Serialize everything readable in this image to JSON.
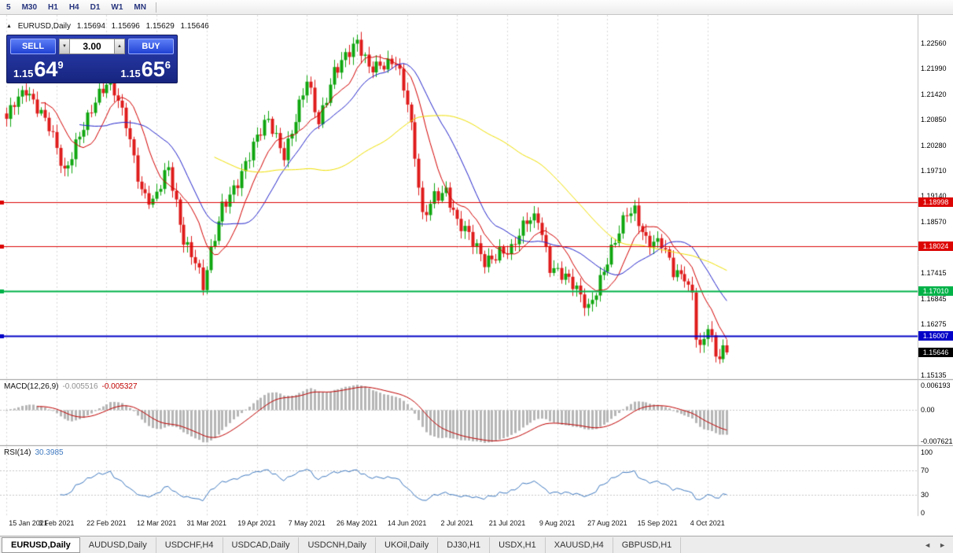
{
  "toolbar": {
    "timeframes": [
      "5",
      "M30",
      "H1",
      "H4",
      "D1",
      "W1",
      "MN"
    ]
  },
  "icons": {
    "chart_marker": "▲",
    "volume_down": "▼",
    "volume_up": "▲",
    "scroll_left": "◄",
    "scroll_right": "►"
  },
  "trade_widget": {
    "sell_label": "SELL",
    "buy_label": "BUY",
    "volume": "3.00",
    "sell_price": {
      "prefix": "1.15",
      "big": "64",
      "sup": "9"
    },
    "buy_price": {
      "prefix": "1.15",
      "big": "65",
      "sup": "6"
    }
  },
  "chart": {
    "header": {
      "symbol": "EURUSD,Daily",
      "open": "1.15694",
      "high": "1.15696",
      "low": "1.15629",
      "close": "1.15646"
    },
    "price_axis": {
      "ticks": [
        "1.22560",
        "1.21990",
        "1.21420",
        "1.20850",
        "1.20280",
        "1.19710",
        "1.19140",
        "1.18570",
        "1.17415",
        "1.16845",
        "1.16275",
        "1.15135"
      ]
    },
    "levels": [
      {
        "label": "1.18998",
        "value": 1.18998,
        "color": "#dd0404",
        "width": 1
      },
      {
        "label": "1.18024",
        "value": 1.18024,
        "color": "#dd0404",
        "width": 1
      },
      {
        "label": "1.17010",
        "value": 1.1701,
        "color": "#00b248",
        "width": 2
      },
      {
        "label": "1.16007",
        "value": 1.16007,
        "color": "#0202c8",
        "width": 2
      }
    ],
    "current_price": {
      "label": "1.15646",
      "value": 1.15646,
      "bg": "#000000"
    },
    "candles": {
      "count": 188,
      "up_color": "#0fa60f",
      "down_color": "#df1b1b",
      "anchors": [
        [
          0,
          1.208
        ],
        [
          2,
          1.2125
        ],
        [
          5,
          1.216
        ],
        [
          8,
          1.2115
        ],
        [
          11,
          1.2065
        ],
        [
          15,
          1.1962
        ],
        [
          19,
          1.206
        ],
        [
          23,
          1.2125
        ],
        [
          27,
          1.2168
        ],
        [
          31,
          1.2085
        ],
        [
          35,
          1.1925
        ],
        [
          38,
          1.1892
        ],
        [
          42,
          1.1978
        ],
        [
          46,
          1.1822
        ],
        [
          49,
          1.177
        ],
        [
          51,
          1.1706
        ],
        [
          53,
          1.1782
        ],
        [
          56,
          1.1892
        ],
        [
          60,
          1.1952
        ],
        [
          65,
          1.204
        ],
        [
          68,
          1.2082
        ],
        [
          72,
          1.2012
        ],
        [
          78,
          1.2168
        ],
        [
          81,
          1.2072
        ],
        [
          85,
          1.22
        ],
        [
          88,
          1.2232
        ],
        [
          91,
          1.2252
        ],
        [
          94,
          1.2195
        ],
        [
          98,
          1.2215
        ],
        [
          101,
          1.2222
        ],
        [
          104,
          1.212
        ],
        [
          106,
          1.1998
        ],
        [
          108,
          1.1862
        ],
        [
          111,
          1.192
        ],
        [
          114,
          1.193
        ],
        [
          117,
          1.1852
        ],
        [
          120,
          1.1822
        ],
        [
          124,
          1.1772
        ],
        [
          128,
          1.1792
        ],
        [
          131,
          1.1788
        ],
        [
          135,
          1.1858
        ],
        [
          138,
          1.1872
        ],
        [
          141,
          1.176
        ],
        [
          144,
          1.1735
        ],
        [
          147,
          1.1712
        ],
        [
          151,
          1.1668
        ],
        [
          154,
          1.1732
        ],
        [
          158,
          1.1808
        ],
        [
          161,
          1.1872
        ],
        [
          163,
          1.1882
        ],
        [
          166,
          1.1822
        ],
        [
          170,
          1.1808
        ],
        [
          173,
          1.1738
        ],
        [
          176,
          1.1728
        ],
        [
          178,
          1.17
        ],
        [
          179,
          1.16
        ],
        [
          180,
          1.158
        ],
        [
          181,
          1.1597
        ],
        [
          182,
          1.1621
        ],
        [
          183,
          1.1598
        ],
        [
          184,
          1.1555
        ],
        [
          185,
          1.155
        ],
        [
          186,
          1.1573
        ],
        [
          187,
          1.15646
        ]
      ]
    },
    "moving_averages": [
      {
        "period": 10,
        "color": "#d40000"
      },
      {
        "period": 20,
        "color": "#2222cc"
      },
      {
        "period": 55,
        "color": "#f0e000"
      }
    ],
    "dates": [
      "15 Jan 2021",
      "3 Feb 2021",
      "22 Feb 2021",
      "12 Mar 2021",
      "31 Mar 2021",
      "19 Apr 2021",
      "7 May 2021",
      "26 May 2021",
      "14 Jun 2021",
      "2 Jul 2021",
      "21 Jul 2021",
      "9 Aug 2021",
      "27 Aug 2021",
      "15 Sep 2021",
      "4 Oct 2021"
    ],
    "bars_per_tick": 13
  },
  "macd": {
    "title": "MACD(12,26,9)",
    "value_main": "-0.005516",
    "value_signal": "-0.005327",
    "params": {
      "fast": 12,
      "slow": 26,
      "signal": 9
    },
    "axis": [
      {
        "label": "0.006193",
        "value": 0.006193
      },
      {
        "label": "0.00",
        "value": 0
      },
      {
        "label": "-0.007621",
        "value": -0.007621
      }
    ],
    "hist_color": "#b6b6b6",
    "signal_color": "#c00000"
  },
  "rsi": {
    "title": "RSI(14)",
    "value": "30.3985",
    "period": 14,
    "axis": [
      {
        "label": "100",
        "value": 100
      },
      {
        "label": "70",
        "value": 70
      },
      {
        "label": "30",
        "value": 30
      },
      {
        "label": "0",
        "value": 0
      }
    ],
    "levels": [
      70,
      30
    ],
    "line_color": "#3e79c0"
  },
  "tabs": {
    "active": 0,
    "items": [
      "EURUSD,Daily",
      "AUDUSD,Daily",
      "USDCHF,H4",
      "USDCAD,Daily",
      "USDCNH,Daily",
      "UKOil,Daily",
      "DJ30,H1",
      "USDX,H1",
      "XAUUSD,H4",
      "GBPUSD,H1"
    ]
  }
}
